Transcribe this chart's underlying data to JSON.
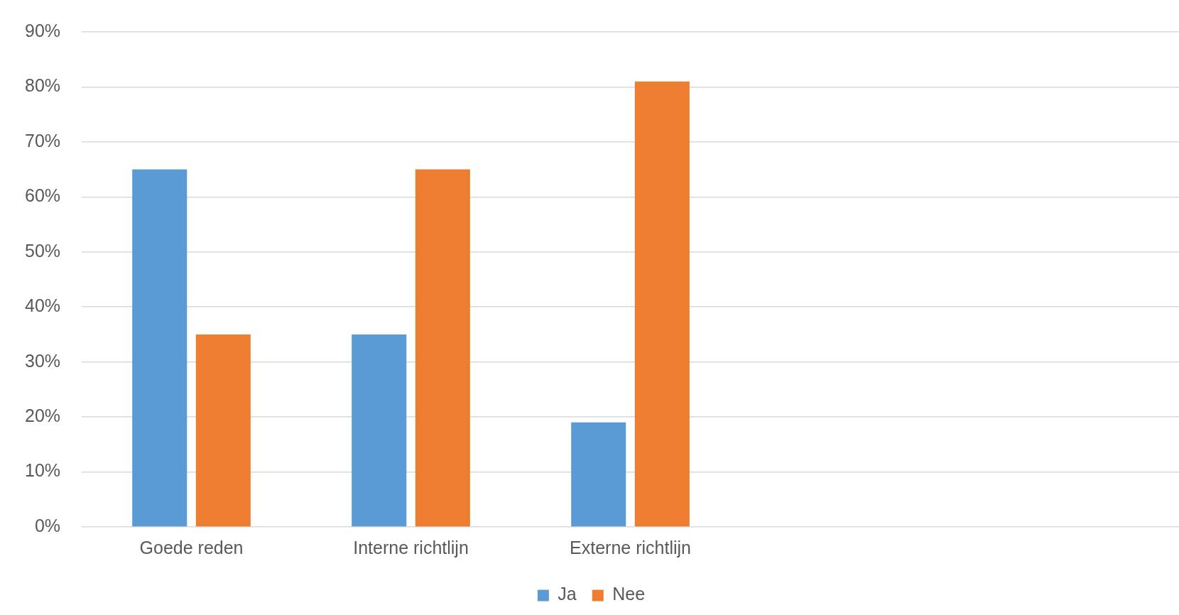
{
  "chart_data": {
    "type": "bar",
    "categories": [
      "Goede reden",
      "Interne richtlijn",
      "Externe richtlijn",
      null,
      null
    ],
    "series": [
      {
        "name": "Ja",
        "color": "#5b9bd5",
        "values": [
          65,
          35,
          19,
          null,
          null
        ]
      },
      {
        "name": "Nee",
        "color": "#ed7d31",
        "values": [
          35,
          65,
          81,
          null,
          null
        ]
      }
    ],
    "ylim": [
      0,
      90
    ],
    "yticks": [
      {
        "value": 0,
        "label": "0%"
      },
      {
        "value": 10,
        "label": "10%"
      },
      {
        "value": 20,
        "label": "20%"
      },
      {
        "value": 30,
        "label": "30%"
      },
      {
        "value": 40,
        "label": "40%"
      },
      {
        "value": 50,
        "label": "50%"
      },
      {
        "value": 60,
        "label": "60%"
      },
      {
        "value": 70,
        "label": "70%"
      },
      {
        "value": 80,
        "label": "80%"
      },
      {
        "value": 90,
        "label": "90%"
      }
    ],
    "grid": "y",
    "legend": "bottom"
  }
}
